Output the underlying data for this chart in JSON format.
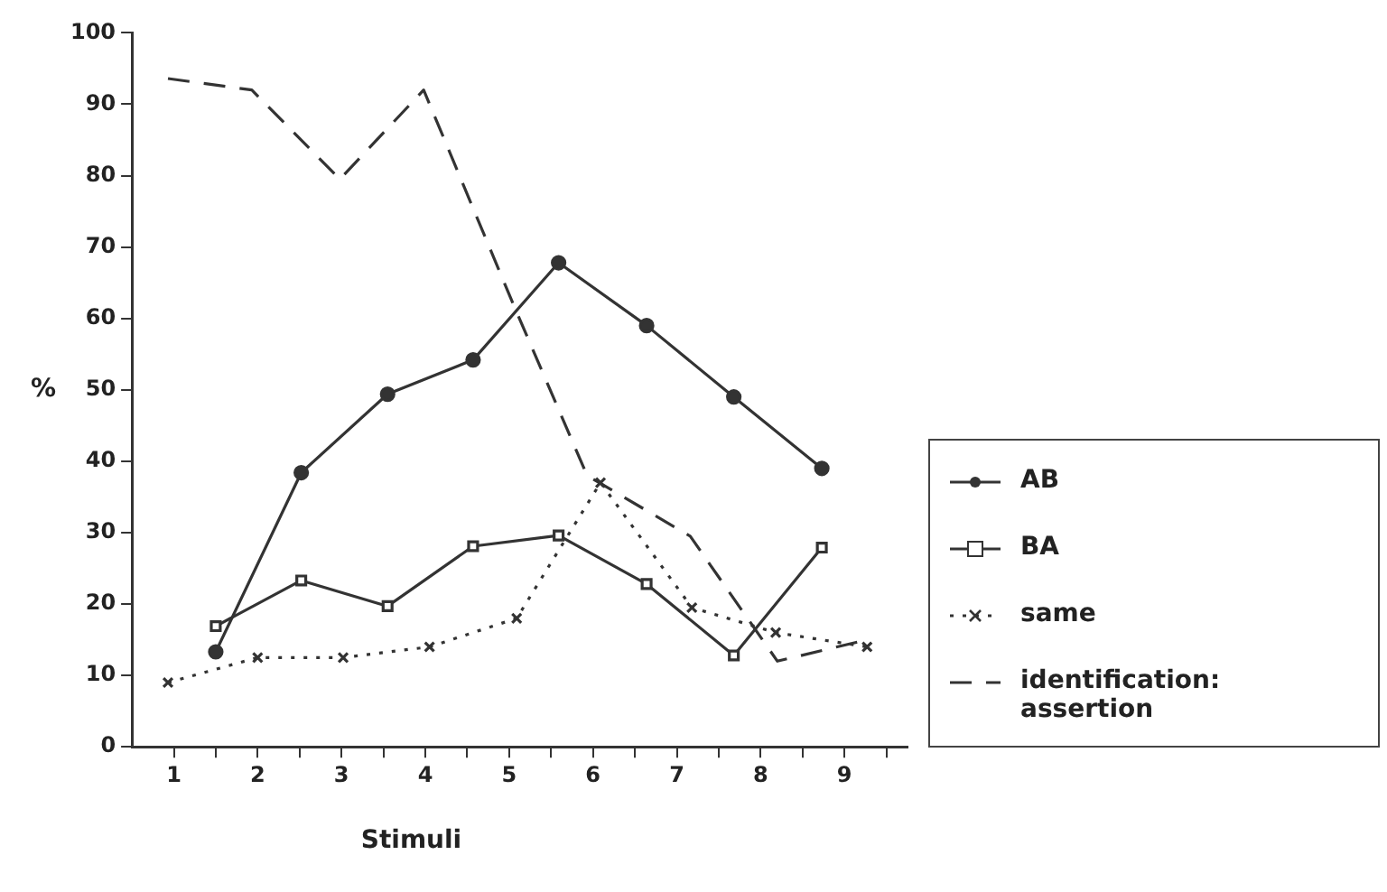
{
  "chart_data": {
    "type": "line",
    "xlabel": "Stimuli",
    "ylabel": "%",
    "xlim": [
      0.5,
      9.75
    ],
    "ylim": [
      0,
      100
    ],
    "xticks": [
      1,
      {
        "value": 1.5,
        "label": null
      },
      2,
      {
        "value": 2.5,
        "label": null
      },
      3,
      {
        "value": 3.5,
        "label": null
      },
      4,
      {
        "value": 4.5,
        "label": null
      },
      5,
      {
        "value": 5.5,
        "label": null
      },
      6,
      {
        "value": 6.5,
        "label": null
      },
      7,
      {
        "value": 7.5,
        "label": null
      },
      8,
      {
        "value": 8.5,
        "label": null
      },
      9,
      {
        "value": 9.5,
        "label": null
      }
    ],
    "yticks": [
      0,
      10,
      20,
      30,
      40,
      50,
      60,
      70,
      80,
      90,
      100
    ],
    "grid": false,
    "legend": "right",
    "series": [
      {
        "name": "AB",
        "color": "#333333",
        "marker": "circle",
        "line_style": "solid",
        "x": [
          1.5,
          2.52,
          3.55,
          4.57,
          5.59,
          6.64,
          7.68,
          8.73
        ],
        "values": [
          13.3,
          38.4,
          49.4,
          54.2,
          67.8,
          59,
          49,
          39
        ]
      },
      {
        "name": "BA",
        "color": "#333333",
        "marker": "square",
        "line_style": "solid",
        "x": [
          1.5,
          2.52,
          3.55,
          4.57,
          5.59,
          6.64,
          7.68,
          8.73
        ],
        "values": [
          16.9,
          23.3,
          19.7,
          28.1,
          29.6,
          22.8,
          12.8,
          27.9
        ]
      },
      {
        "name": "same",
        "color": "#333333",
        "marker": "cross",
        "line_style": "dotted",
        "x": [
          0.93,
          2.0,
          3.02,
          4.05,
          5.09,
          6.09,
          7.18,
          8.18,
          9.27
        ],
        "values": [
          9,
          12.5,
          12.5,
          14,
          18,
          37,
          19.5,
          16,
          14
        ]
      },
      {
        "name": "identification: assertion",
        "color": "#333333",
        "marker": "none",
        "line_style": "dashed",
        "x": [
          0.93,
          1.93,
          2.98,
          3.98,
          5.07,
          5.93,
          7.16,
          8.2,
          9.27
        ],
        "values": [
          93.6,
          92,
          79.5,
          92,
          61.4,
          38,
          29.5,
          12,
          15
        ]
      }
    ]
  }
}
